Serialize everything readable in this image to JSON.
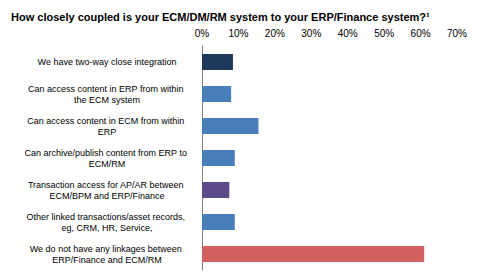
{
  "chart_data": {
    "type": "bar",
    "title": "How closely coupled is your ECM/DM/RM system to your ERP/Finance system?¹",
    "orientation": "horizontal",
    "categories": [
      "We have two-way close integration",
      "Can access content in ERP from within the ECM system",
      "Can access content in ECM from within ERP",
      "Can archive/publish content from ERP to ECM/RM",
      "Transaction access for AP/AR between ECM/BPM and ERP/Finance",
      "Other linked transactions/asset records, eg, CRM, HR, Service,",
      "We do not have any linkages between ERP/Finance and ECM/RM"
    ],
    "values": [
      8.5,
      8,
      15.5,
      9,
      7.5,
      9,
      61
    ],
    "colors": [
      "#1f3b5c",
      "#4a7ebb",
      "#4a7ebb",
      "#4a7ebb",
      "#5d4a88",
      "#4a7ebb",
      "#d3605f"
    ],
    "xlim": [
      0,
      70
    ],
    "xticks": [
      {
        "value": 0,
        "label": "0%"
      },
      {
        "value": 10,
        "label": "10%"
      },
      {
        "value": 20,
        "label": "20%"
      },
      {
        "value": 30,
        "label": "30%"
      },
      {
        "value": 40,
        "label": "40%"
      },
      {
        "value": 50,
        "label": "50%"
      },
      {
        "value": 60,
        "label": "60%"
      },
      {
        "value": 70,
        "label": "70%"
      }
    ],
    "grid": false
  }
}
